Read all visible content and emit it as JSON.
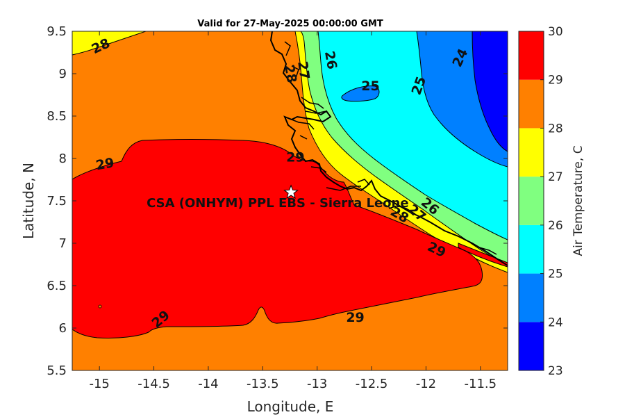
{
  "chart_data": {
    "type": "heatmap",
    "title": "Valid for 27-May-2025 00:00:00 GMT",
    "xlabel": "Longitude, E",
    "ylabel": "Latitude, N",
    "xlim": [
      -15.25,
      -11.25
    ],
    "ylim": [
      5.5,
      9.5
    ],
    "xticks": [
      -15,
      -14.5,
      -14,
      -13.5,
      -13,
      -12.5,
      -12,
      -11.5
    ],
    "xtick_labels": [
      "-15",
      "-14.5",
      "-14",
      "-13.5",
      "-13",
      "-12.5",
      "-12",
      "-11.5"
    ],
    "yticks": [
      5.5,
      6,
      6.5,
      7,
      7.5,
      8,
      8.5,
      9,
      9.5
    ],
    "ytick_labels": [
      "5.5",
      "6",
      "6.5",
      "7",
      "7.5",
      "8",
      "8.5",
      "9",
      "9.5"
    ],
    "colorbar": {
      "label": "Air Temperature, C",
      "levels": [
        23,
        24,
        25,
        26,
        27,
        28,
        29,
        30
      ],
      "tick_labels": [
        "23",
        "24",
        "25",
        "26",
        "27",
        "28",
        "29",
        "30"
      ],
      "colors": [
        "#0000ff",
        "#0080ff",
        "#00ffff",
        "#80ff80",
        "#ffff00",
        "#ff8000",
        "#ff0000",
        "#800000"
      ]
    },
    "contour_labels": [
      {
        "text": "28",
        "lon": -14.99,
        "lat": 9.33,
        "rotate": -25
      },
      {
        "text": "24",
        "lon": -11.69,
        "lat": 9.19,
        "rotate": -65
      },
      {
        "text": "26",
        "lon": -12.87,
        "lat": 9.16,
        "rotate": 80
      },
      {
        "text": "27",
        "lon": -13.12,
        "lat": 9.04,
        "rotate": 82
      },
      {
        "text": "28",
        "lon": -13.24,
        "lat": 9.0,
        "rotate": 80
      },
      {
        "text": "25",
        "lon": -12.51,
        "lat": 8.86,
        "rotate": 0
      },
      {
        "text": "25",
        "lon": -12.07,
        "lat": 8.86,
        "rotate": -70
      },
      {
        "text": "29",
        "lon": -14.95,
        "lat": 7.94,
        "rotate": -10
      },
      {
        "text": "29",
        "lon": -13.2,
        "lat": 8.02,
        "rotate": 0
      },
      {
        "text": "28",
        "lon": -12.24,
        "lat": 7.34,
        "rotate": 30
      },
      {
        "text": "27",
        "lon": -12.08,
        "lat": 7.36,
        "rotate": 40
      },
      {
        "text": "26",
        "lon": -11.96,
        "lat": 7.44,
        "rotate": 40
      },
      {
        "text": "29",
        "lon": -11.9,
        "lat": 6.93,
        "rotate": 25
      },
      {
        "text": "29",
        "lon": -14.44,
        "lat": 6.11,
        "rotate": -40
      },
      {
        "text": "29",
        "lon": -12.65,
        "lat": 6.13,
        "rotate": 0
      }
    ],
    "site": {
      "name": "CSA (ONHYM) PPL EBS  - Sierra Leone",
      "lon": -13.24,
      "lat": 7.6,
      "marker": "star"
    },
    "grid": false,
    "legend": "none"
  }
}
